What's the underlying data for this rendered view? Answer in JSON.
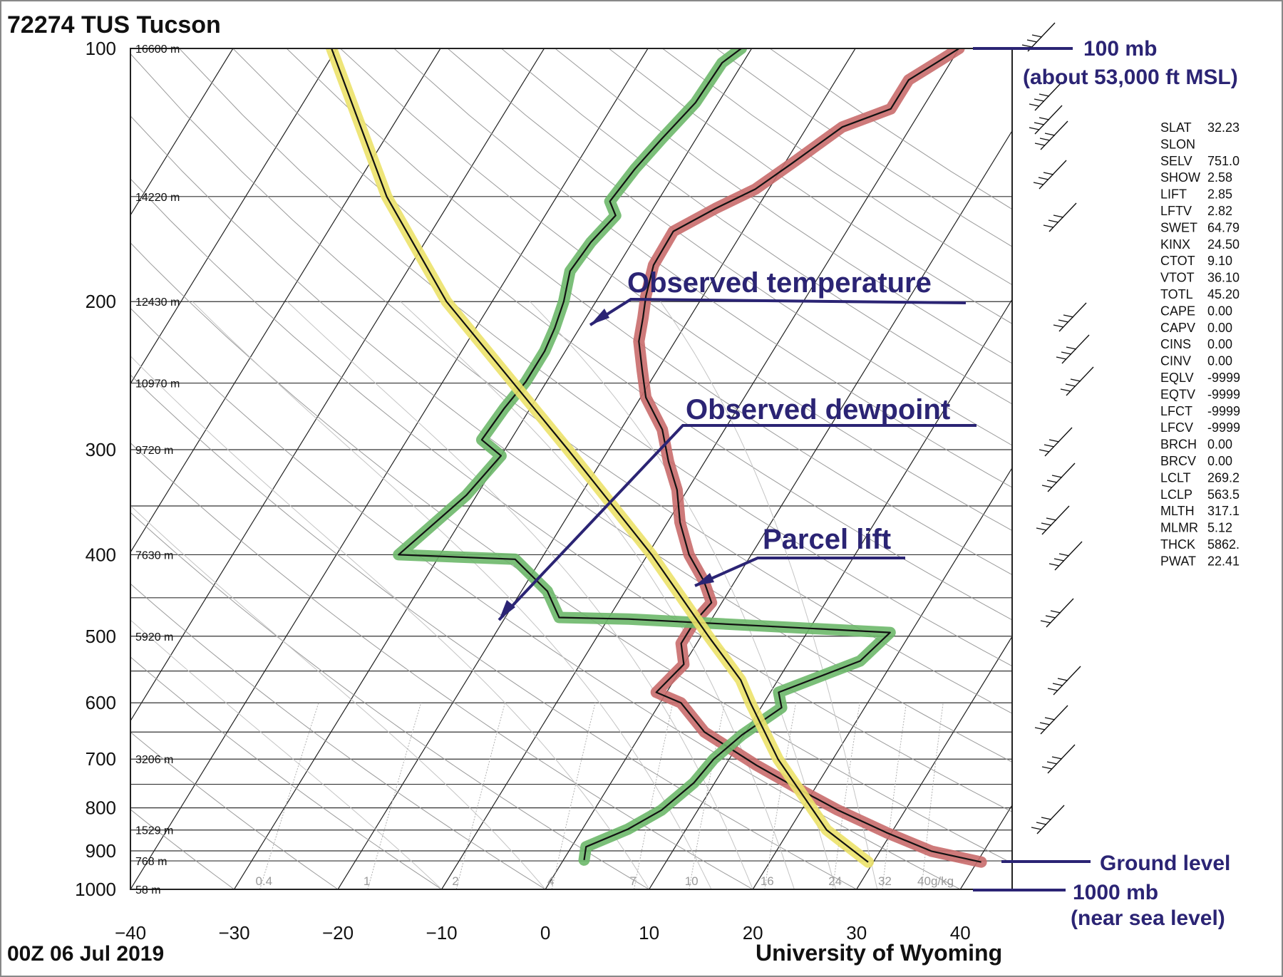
{
  "header": {
    "station": "72274 TUS Tucson"
  },
  "footer": {
    "date": "00Z 06 Jul 2019",
    "credit": "University of Wyoming"
  },
  "annotations": {
    "top_level_line1": "100 mb",
    "top_level_line2": "(about 53,000 ft MSL)",
    "observed_temperature": "Observed temperature",
    "observed_dewpoint": "Observed dewpoint",
    "parcel_lift": "Parcel lift",
    "ground_level": "Ground level",
    "bottom_level_line1": "1000 mb",
    "bottom_level_line2": "(near sea level)"
  },
  "colors": {
    "temperature_highlight": "#c96b6b",
    "dewpoint_highlight": "#6db86a",
    "parcel_highlight": "#ece26a",
    "annotation": "#2b2474"
  },
  "indices": [
    {
      "name": "SLAT",
      "value": "32.23"
    },
    {
      "name": "SLON",
      "value": ""
    },
    {
      "name": "SELV",
      "value": "751.0"
    },
    {
      "name": "SHOW",
      "value": "2.58"
    },
    {
      "name": "LIFT",
      "value": "2.85"
    },
    {
      "name": "LFTV",
      "value": "2.82"
    },
    {
      "name": "SWET",
      "value": "64.79"
    },
    {
      "name": "KINX",
      "value": "24.50"
    },
    {
      "name": "CTOT",
      "value": "9.10"
    },
    {
      "name": "VTOT",
      "value": "36.10"
    },
    {
      "name": "TOTL",
      "value": "45.20"
    },
    {
      "name": "CAPE",
      "value": "0.00"
    },
    {
      "name": "CAPV",
      "value": "0.00"
    },
    {
      "name": "CINS",
      "value": "0.00"
    },
    {
      "name": "CINV",
      "value": "0.00"
    },
    {
      "name": "EQLV",
      "value": "-9999"
    },
    {
      "name": "EQTV",
      "value": "-9999"
    },
    {
      "name": "LFCT",
      "value": "-9999"
    },
    {
      "name": "LFCV",
      "value": "-9999"
    },
    {
      "name": "BRCH",
      "value": "0.00"
    },
    {
      "name": "BRCV",
      "value": "0.00"
    },
    {
      "name": "LCLT",
      "value": "269.2"
    },
    {
      "name": "LCLP",
      "value": "563.5"
    },
    {
      "name": "MLTH",
      "value": "317.1"
    },
    {
      "name": "MLMR",
      "value": "5.12"
    },
    {
      "name": "THCK",
      "value": "5862."
    },
    {
      "name": "PWAT",
      "value": "22.41"
    }
  ],
  "chart_data": {
    "type": "line",
    "title": "72274 TUS Tucson",
    "xlabel": "",
    "ylabel": "",
    "xlim": [
      -40,
      45
    ],
    "ylim": [
      1000,
      100
    ],
    "y_scale": "log",
    "skew": true,
    "x_ticks": [
      -40,
      -30,
      -20,
      -10,
      0,
      10,
      20,
      30,
      40
    ],
    "x_tick_labels": [
      "−40",
      "−30",
      "−20",
      "−10",
      "0",
      "10",
      "20",
      "30",
      "40"
    ],
    "pressure_ticks": [
      {
        "p": 100,
        "label": "100",
        "height": "16600 m"
      },
      {
        "p": 150,
        "label": "",
        "height": "14220 m"
      },
      {
        "p": 200,
        "label": "200",
        "height": "12430 m"
      },
      {
        "p": 250,
        "label": "",
        "height": "10970 m"
      },
      {
        "p": 300,
        "label": "300",
        "height": "9720 m"
      },
      {
        "p": 400,
        "label": "400",
        "height": "7630 m"
      },
      {
        "p": 500,
        "label": "500",
        "height": "5920 m"
      },
      {
        "p": 600,
        "label": "600",
        "height": ""
      },
      {
        "p": 700,
        "label": "700",
        "height": "3206 m"
      },
      {
        "p": 800,
        "label": "800",
        "height": ""
      },
      {
        "p": 850,
        "label": "",
        "height": "1529 m"
      },
      {
        "p": 900,
        "label": "900",
        "height": ""
      },
      {
        "p": 925,
        "label": "",
        "height": "768 m"
      },
      {
        "p": 1000,
        "label": "1000",
        "height": "58 m"
      }
    ],
    "extra_isobars": [
      350,
      450,
      550,
      650,
      750
    ],
    "mixing_ratio_labels": [
      "0.4",
      "1",
      "2",
      "4",
      "7",
      "10",
      "16",
      "24",
      "32",
      "40g/kg"
    ],
    "series": [
      {
        "name": "Observed temperature",
        "points": [
          [
            -10,
            100
          ],
          [
            -11,
            103
          ],
          [
            -13,
            109
          ],
          [
            -13,
            118
          ],
          [
            -16.6,
            124
          ],
          [
            -19.3,
            137
          ],
          [
            -21.3,
            147
          ],
          [
            -24,
            155
          ],
          [
            -26.7,
            165
          ],
          [
            -26.6,
            181
          ],
          [
            -25.5,
            197
          ],
          [
            -24.5,
            209
          ],
          [
            -23.5,
            223
          ],
          [
            -21.5,
            241
          ],
          [
            -19.5,
            260
          ],
          [
            -16,
            284
          ],
          [
            -13.5,
            310
          ],
          [
            -11,
            335
          ],
          [
            -8.8,
            366
          ],
          [
            -6,
            400
          ],
          [
            -3,
            430
          ],
          [
            -1,
            456
          ],
          [
            -1.5,
            481
          ],
          [
            -1.5,
            510
          ],
          [
            0,
            540
          ],
          [
            -1,
            583
          ],
          [
            2,
            600
          ],
          [
            6,
            650
          ],
          [
            13,
            712
          ],
          [
            18.5,
            760
          ],
          [
            23.5,
            805
          ],
          [
            29.5,
            856
          ],
          [
            35,
            901
          ],
          [
            40.4,
            928
          ]
        ]
      },
      {
        "name": "Observed dewpoint",
        "points": [
          [
            -31,
            100
          ],
          [
            -32,
            104
          ],
          [
            -32.2,
            116
          ],
          [
            -33.3,
            128
          ],
          [
            -34.1,
            139
          ],
          [
            -34.6,
            152
          ],
          [
            -33.2,
            158
          ],
          [
            -34,
            170
          ],
          [
            -34.3,
            184
          ],
          [
            -33.1,
            200
          ],
          [
            -32.4,
            215
          ],
          [
            -32,
            229
          ],
          [
            -32,
            249
          ],
          [
            -32.5,
            268
          ],
          [
            -32.8,
            292
          ],
          [
            -30,
            305
          ],
          [
            -31,
            340
          ],
          [
            -34,
            400
          ],
          [
            -22.5,
            405
          ],
          [
            -17.5,
            442
          ],
          [
            -14.8,
            475
          ],
          [
            -8,
            477
          ],
          [
            18,
            495
          ],
          [
            16.8,
            535
          ],
          [
            10.8,
            583
          ],
          [
            12,
            608
          ],
          [
            9.8,
            655
          ],
          [
            8.5,
            700
          ],
          [
            8,
            747
          ],
          [
            6.5,
            805
          ],
          [
            4.4,
            848
          ],
          [
            1.4,
            890
          ],
          [
            2,
            923
          ]
        ]
      },
      {
        "name": "Parcel lift",
        "points": [
          [
            -70.5,
            100
          ],
          [
            -56.4,
            150
          ],
          [
            -44.4,
            200
          ],
          [
            -23.9,
            300
          ],
          [
            -9.6,
            400
          ],
          [
            0.7,
            500
          ],
          [
            6.4,
            563.5
          ],
          [
            8.7,
            600
          ],
          [
            14.7,
            700
          ],
          [
            23.6,
            850
          ],
          [
            29.5,
            928
          ]
        ]
      }
    ]
  }
}
